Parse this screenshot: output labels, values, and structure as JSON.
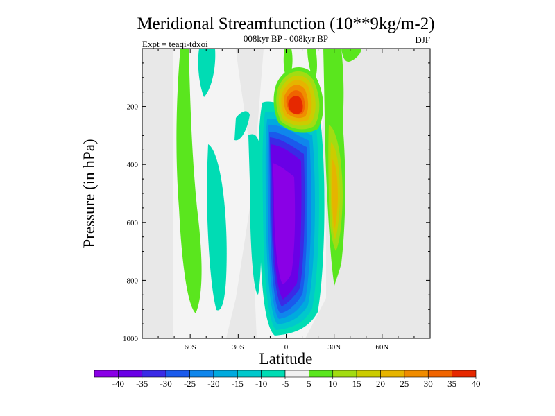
{
  "chart_data": {
    "type": "contour",
    "title": "Meridional Streamfunction (10**9kg/m-2)",
    "subtitle": "008kyr BP - 008kyr BP",
    "experiment": "Expt = teaqi-tdxoi",
    "season": "DJF",
    "xlabel": "Latitude",
    "ylabel": "Pressure (in hPa)",
    "xlim": [
      -90,
      90
    ],
    "ylim": [
      1000,
      0
    ],
    "x_ticks": [
      {
        "value": -60,
        "label": "60S"
      },
      {
        "value": -30,
        "label": "30S"
      },
      {
        "value": 0,
        "label": "0"
      },
      {
        "value": 30,
        "label": "30N"
      },
      {
        "value": 60,
        "label": "60N"
      }
    ],
    "y_ticks": [
      {
        "value": 200,
        "label": "200"
      },
      {
        "value": 400,
        "label": "400"
      },
      {
        "value": 600,
        "label": "600"
      },
      {
        "value": 800,
        "label": "800"
      },
      {
        "value": 1000,
        "label": "1000"
      }
    ],
    "colorbar": {
      "labels": [
        "-40",
        "-35",
        "-30",
        "-25",
        "-20",
        "-15",
        "-10",
        "-5",
        "5",
        "10",
        "15",
        "20",
        "25",
        "30",
        "35",
        "40"
      ],
      "colors": [
        "#8a00e6",
        "#6a00e6",
        "#3a2ae6",
        "#1a5aec",
        "#0f86ec",
        "#00aade",
        "#00c8cc",
        "#00dcb4",
        "#f0f0f0",
        "#5ae61e",
        "#a2dc12",
        "#cccc00",
        "#e6b400",
        "#f08c00",
        "#f06400",
        "#e62800"
      ]
    },
    "background_color": "#e8e8e8",
    "features": [
      {
        "name": "southern hemisphere cell core",
        "lat": -2,
        "pressure": 500,
        "value": -40
      },
      {
        "name": "upper tropospheric maximum",
        "lat": 5,
        "pressure": 185,
        "value": 40
      },
      {
        "name": "northern subtropical positive band",
        "lat": 31,
        "pressure": 400,
        "value": 25
      }
    ]
  }
}
